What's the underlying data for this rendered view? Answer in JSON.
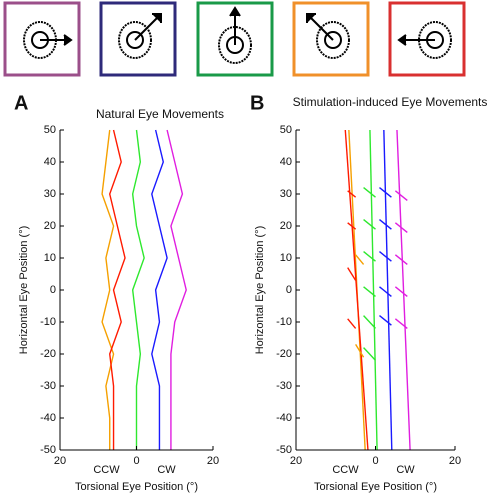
{
  "charts": [
    {
      "chart_data": {
        "type": "line",
        "panel": "A",
        "title": "Natural Eye Movements",
        "x_label": "Torsional Eye Position (°)",
        "y_label": "Horizontal Eye Position (°)",
        "annotations": [
          "CCW",
          "CW"
        ],
        "xlim": [
          -20,
          20
        ],
        "ylim": [
          -50,
          50
        ],
        "xticks": [
          {
            "value": -20,
            "label": "20"
          },
          0,
          20
        ],
        "yticks": [
          -50,
          -40,
          -30,
          -20,
          -10,
          0,
          10,
          20,
          30,
          40,
          50
        ],
        "series": [
          {
            "color": "#f5a000",
            "x": [
              -7,
              -8,
              -9,
              -6,
              -8,
              -7,
              -9,
              -6,
              -8,
              -7,
              -7
            ],
            "values": [
              50,
              40,
              30,
              20,
              10,
              0,
              -10,
              -20,
              -30,
              -40,
              -50
            ]
          },
          {
            "color": "#ff1a00",
            "x": [
              -6,
              -4,
              -7,
              -5,
              -3,
              -6,
              -4,
              -7,
              -6,
              -6,
              -6
            ],
            "values": [
              50,
              40,
              30,
              20,
              10,
              0,
              -10,
              -20,
              -30,
              -40,
              -50
            ]
          },
          {
            "color": "#2ee82e",
            "x": [
              0,
              1,
              -1,
              0,
              2,
              -1,
              0,
              1,
              0,
              0,
              0
            ],
            "values": [
              50,
              40,
              30,
              20,
              10,
              0,
              -10,
              -20,
              -30,
              -40,
              -50
            ]
          },
          {
            "color": "#1a1aff",
            "x": [
              5,
              7,
              4,
              6,
              8,
              5,
              6,
              4,
              6,
              6,
              6
            ],
            "values": [
              50,
              40,
              30,
              20,
              10,
              0,
              -10,
              -20,
              -30,
              -40,
              -50
            ]
          },
          {
            "color": "#e01ee0",
            "x": [
              8,
              10,
              12,
              9,
              11,
              13,
              10,
              9,
              9,
              9,
              9
            ],
            "values": [
              50,
              40,
              30,
              20,
              10,
              0,
              -10,
              -20,
              -30,
              -40,
              -50
            ]
          }
        ]
      }
    },
    {
      "chart_data": {
        "type": "line",
        "panel": "B",
        "title": "Stimulation-induced Eye Movements",
        "x_label": "Torsional Eye Position (°)",
        "y_label": "Horizontal Eye Position (°)",
        "annotations": [
          "CCW",
          "CW"
        ],
        "xlim": [
          -20,
          20
        ],
        "ylim": [
          -50,
          50
        ],
        "xticks": [
          {
            "value": -20,
            "label": "20"
          },
          0,
          20
        ],
        "yticks": [
          -50,
          -40,
          -30,
          -20,
          -10,
          0,
          10,
          20,
          30,
          40,
          50
        ],
        "series": [
          {
            "color": "#f5a000",
            "x": [
              -6.7,
              -2.6
            ],
            "values": [
              50,
              -50
            ]
          },
          {
            "color": "#ff1a00",
            "x": [
              -7.6,
              -1.9
            ],
            "values": [
              50,
              -50
            ]
          },
          {
            "color": "#2ee82e",
            "x": [
              -1.4,
              0.4
            ],
            "values": [
              50,
              -50
            ]
          },
          {
            "color": "#1a1aff",
            "x": [
              2.1,
              4.1
            ],
            "values": [
              50,
              -50
            ]
          },
          {
            "color": "#e01ee0",
            "x": [
              5.4,
              8.7
            ],
            "values": [
              50,
              -50
            ]
          },
          {
            "color": "#ff1a00",
            "x": [
              -7,
              -5
            ],
            "values": [
              31,
              29
            ]
          },
          {
            "color": "#ff1a00",
            "x": [
              -7,
              -5
            ],
            "values": [
              21,
              19
            ]
          },
          {
            "color": "#ff1a00",
            "x": [
              -7,
              -5
            ],
            "values": [
              7,
              3
            ]
          },
          {
            "color": "#ff1a00",
            "x": [
              -7,
              -5
            ],
            "values": [
              -9,
              -12
            ]
          },
          {
            "color": "#f5a000",
            "x": [
              -5,
              -3
            ],
            "values": [
              11,
              8
            ]
          },
          {
            "color": "#f5a000",
            "x": [
              -5,
              -3
            ],
            "values": [
              -17,
              -21
            ]
          },
          {
            "color": "#2ee82e",
            "x": [
              -3,
              0
            ],
            "values": [
              32,
              29
            ]
          },
          {
            "color": "#2ee82e",
            "x": [
              -3,
              0
            ],
            "values": [
              22,
              19
            ]
          },
          {
            "color": "#2ee82e",
            "x": [
              -3,
              0
            ],
            "values": [
              12,
              9
            ]
          },
          {
            "color": "#2ee82e",
            "x": [
              -3,
              0
            ],
            "values": [
              1,
              -2
            ]
          },
          {
            "color": "#2ee82e",
            "x": [
              -3,
              0
            ],
            "values": [
              -8,
              -12
            ]
          },
          {
            "color": "#2ee82e",
            "x": [
              -3,
              0
            ],
            "values": [
              -18,
              -22
            ]
          },
          {
            "color": "#1a1aff",
            "x": [
              1,
              4
            ],
            "values": [
              32,
              29
            ]
          },
          {
            "color": "#1a1aff",
            "x": [
              1,
              4
            ],
            "values": [
              22,
              19
            ]
          },
          {
            "color": "#1a1aff",
            "x": [
              1,
              4
            ],
            "values": [
              12,
              9
            ]
          },
          {
            "color": "#1a1aff",
            "x": [
              1,
              4
            ],
            "values": [
              1,
              -2
            ]
          },
          {
            "color": "#1a1aff",
            "x": [
              1,
              4
            ],
            "values": [
              -8,
              -11
            ]
          },
          {
            "color": "#e01ee0",
            "x": [
              5,
              8
            ],
            "values": [
              31,
              28
            ]
          },
          {
            "color": "#e01ee0",
            "x": [
              5,
              8
            ],
            "values": [
              21,
              18
            ]
          },
          {
            "color": "#e01ee0",
            "x": [
              5,
              8
            ],
            "values": [
              11,
              8
            ]
          },
          {
            "color": "#e01ee0",
            "x": [
              5,
              8
            ],
            "values": [
              1,
              -2
            ]
          },
          {
            "color": "#e01ee0",
            "x": [
              5,
              8
            ],
            "values": [
              -9,
              -12
            ]
          }
        ]
      }
    }
  ]
}
